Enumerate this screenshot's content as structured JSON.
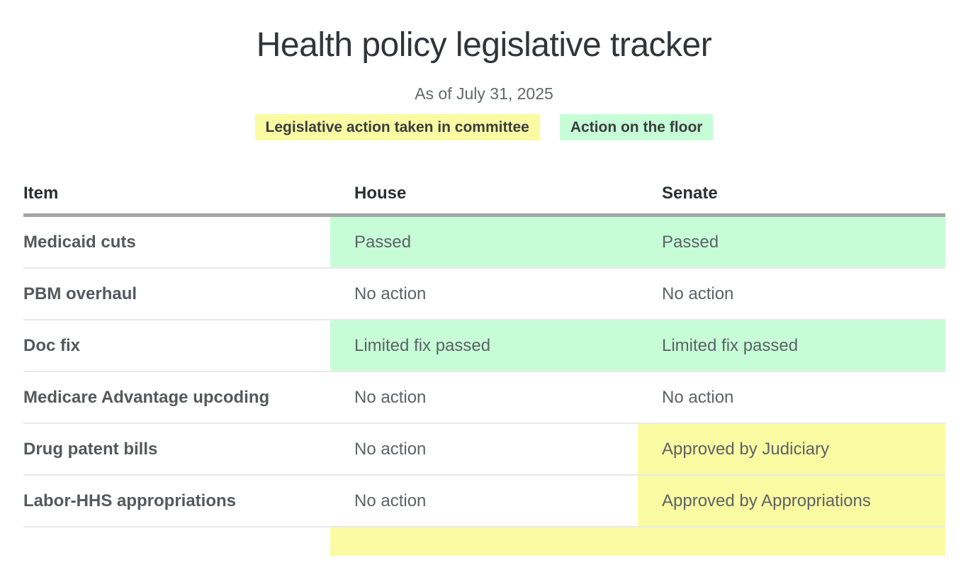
{
  "chart_data": {
    "type": "table",
    "title": "Health policy legislative tracker",
    "subtitle": "As of July 31, 2025",
    "legend": [
      {
        "id": "committee",
        "label": "Legislative action taken in committee",
        "color": "#fafaa2"
      },
      {
        "id": "floor",
        "label": "Action on the floor",
        "color": "#c6fdd7"
      }
    ],
    "colors": {
      "committee": "#fafaa2",
      "floor": "#c6fdd7",
      "header_border": "#a4a4a4",
      "row_divider": "#e9e9e9",
      "title_text": "#313439",
      "body_text": "#5e6266"
    },
    "columns": [
      "Item",
      "House",
      "Senate"
    ],
    "rows": [
      {
        "item": "Medicaid cuts",
        "house": {
          "text": "Passed",
          "highlight": "floor"
        },
        "senate": {
          "text": "Passed",
          "highlight": "floor"
        }
      },
      {
        "item": "PBM overhaul",
        "house": {
          "text": "No action",
          "highlight": null
        },
        "senate": {
          "text": "No action",
          "highlight": null
        }
      },
      {
        "item": "Doc fix",
        "house": {
          "text": "Limited fix passed",
          "highlight": "floor"
        },
        "senate": {
          "text": "Limited fix passed",
          "highlight": "floor"
        }
      },
      {
        "item": "Medicare Advantage upcoding",
        "house": {
          "text": "No action",
          "highlight": null
        },
        "senate": {
          "text": "No action",
          "highlight": null
        }
      },
      {
        "item": "Drug patent bills",
        "house": {
          "text": "No action",
          "highlight": null
        },
        "senate": {
          "text": "Approved by Judiciary",
          "highlight": "committee"
        }
      },
      {
        "item": "Labor-HHS appropriations",
        "house": {
          "text": "No action",
          "highlight": null
        },
        "senate": {
          "text": "Approved by Appropriations",
          "highlight": "committee"
        }
      },
      {
        "item": "",
        "house": {
          "text": "",
          "highlight": "committee"
        },
        "senate": {
          "text": "",
          "highlight": "committee"
        },
        "clipped": true
      }
    ]
  }
}
